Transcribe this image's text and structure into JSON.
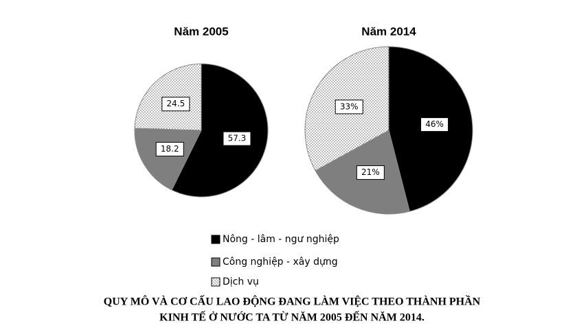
{
  "chart_data": [
    {
      "type": "pie",
      "title": "Năm 2005",
      "values": [
        57.3,
        18.2,
        24.5
      ]
    },
    {
      "type": "pie",
      "title": "Năm 2014",
      "values": [
        46,
        21,
        33
      ],
      "value_labels": [
        "46%",
        "21%",
        "33%"
      ]
    }
  ],
  "legend": [
    {
      "label": "Nông  - lâm - ngư nghiệp",
      "color": "#000000"
    },
    {
      "label": "Công nghiệp - xây dựng",
      "color": "#7f7f7f"
    },
    {
      "label": "Dịch vụ",
      "color": "#ffffff",
      "pattern": "dotted"
    }
  ],
  "caption": [
    "QUY MÔ VÀ CƠ CẤU LAO ĐỘNG ĐANG LÀM VIỆC THEO THÀNH PHẦN",
    "KINH TẾ Ở NƯỚC TA TỪ NĂM 2005 ĐẾN NĂM 2014."
  ]
}
